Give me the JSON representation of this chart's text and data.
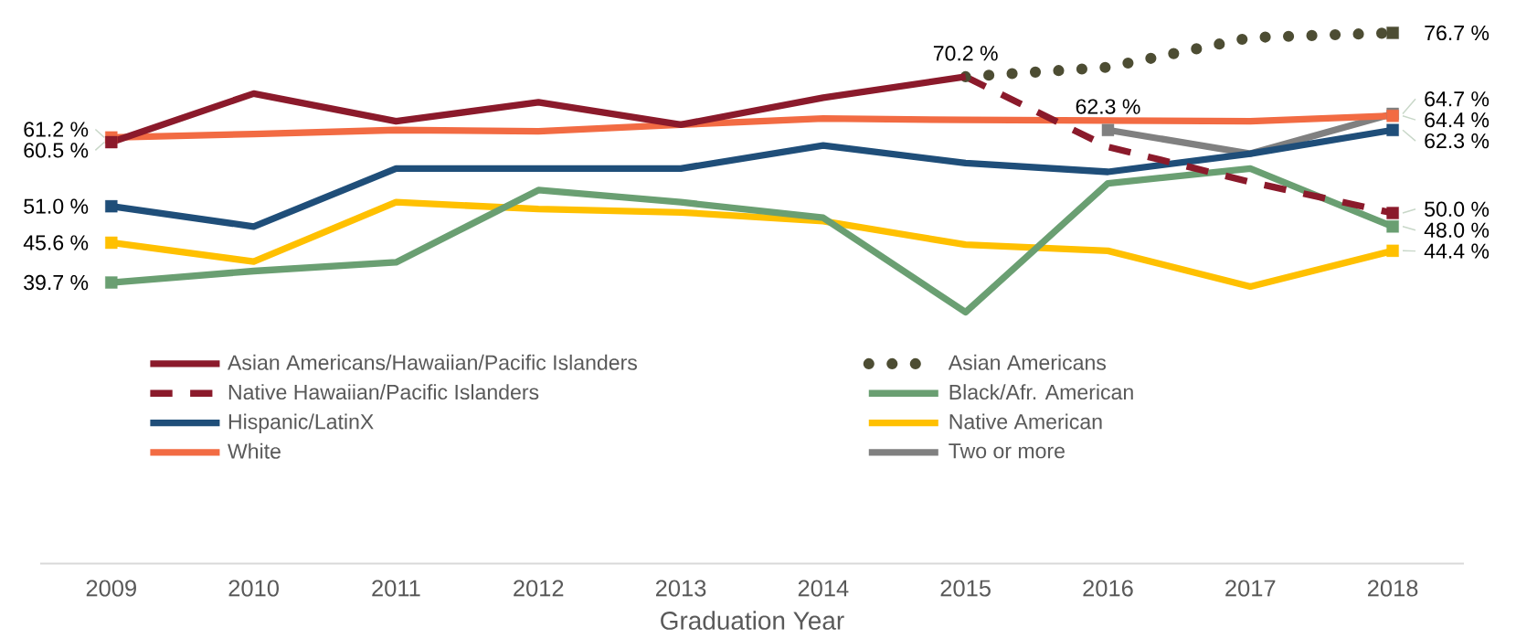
{
  "chart_data": {
    "type": "line",
    "xlabel": "Graduation Year",
    "legend": "bottom",
    "categories": [
      "2009",
      "2010",
      "2011",
      "2012",
      "2013",
      "2014",
      "2015",
      "2016",
      "2017",
      "2018"
    ],
    "series": [
      {
        "name": "Asian Americans/Hawaiian/Pacific Islanders",
        "color": "#8b1a2b",
        "line_style": "solid",
        "values": [
          60.5,
          67.7,
          63.6,
          66.4,
          63.1,
          67.1,
          70.2,
          null,
          null,
          null
        ],
        "value_labels": [
          "60.5 %",
          null,
          null,
          null,
          null,
          null,
          null,
          null,
          null,
          null
        ]
      },
      {
        "name": "Asian Americans",
        "color": "#4d4d33",
        "line_style": "dotted",
        "values": [
          null,
          null,
          null,
          null,
          null,
          null,
          70.2,
          71.6,
          76.0,
          76.7
        ],
        "value_labels": [
          null,
          null,
          null,
          null,
          null,
          null,
          null,
          null,
          null,
          "76.7 %"
        ]
      },
      {
        "name": "Native Hawaiian/Pacific Islanders",
        "color": "#8b1a2b",
        "line_style": "dashed",
        "values": [
          null,
          null,
          null,
          null,
          null,
          null,
          70.2,
          59.8,
          54.6,
          50.0
        ],
        "value_labels": [
          null,
          null,
          null,
          null,
          null,
          null,
          null,
          null,
          null,
          "50.0 %"
        ]
      },
      {
        "name": "Black/Afr. American",
        "color": "#6a9f72",
        "line_style": "solid",
        "values": [
          39.7,
          41.4,
          42.7,
          53.4,
          51.6,
          49.3,
          35.3,
          54.4,
          56.6,
          48.0
        ],
        "value_labels": [
          "39.7 %",
          null,
          null,
          null,
          null,
          null,
          null,
          null,
          null,
          "48.0 %"
        ]
      },
      {
        "name": "Hispanic/LatinX",
        "color": "#1f4e79",
        "line_style": "solid",
        "values": [
          51.0,
          48.0,
          56.6,
          56.6,
          56.6,
          60.0,
          57.4,
          56.1,
          58.8,
          62.3
        ],
        "value_labels": [
          "51.0 %",
          null,
          null,
          null,
          null,
          null,
          null,
          null,
          null,
          "62.3 %"
        ]
      },
      {
        "name": "Native American",
        "color": "#ffc000",
        "line_style": "solid",
        "values": [
          45.6,
          42.8,
          51.6,
          50.6,
          50.1,
          48.8,
          45.3,
          44.4,
          39.1,
          44.4
        ],
        "value_labels": [
          "45.6 %",
          null,
          null,
          null,
          null,
          null,
          null,
          null,
          null,
          "44.4 %"
        ]
      },
      {
        "name": "White",
        "color": "#f26b43",
        "line_style": "solid",
        "values": [
          61.2,
          61.7,
          62.3,
          62.1,
          63.1,
          64.0,
          63.8,
          63.7,
          63.6,
          64.4
        ],
        "value_labels": [
          "61.2 %",
          null,
          null,
          null,
          null,
          null,
          null,
          null,
          null,
          "64.4 %"
        ]
      },
      {
        "name": "Two or more",
        "color": "#808080",
        "line_style": "solid",
        "values": [
          null,
          null,
          null,
          null,
          null,
          null,
          null,
          62.3,
          58.8,
          64.7
        ],
        "value_labels": [
          null,
          null,
          null,
          null,
          null,
          null,
          null,
          "62.3 %",
          null,
          "64.7 %"
        ]
      }
    ],
    "annotations": [
      {
        "text": "70.2 %",
        "x": "2015",
        "y": 70.2
      }
    ]
  }
}
